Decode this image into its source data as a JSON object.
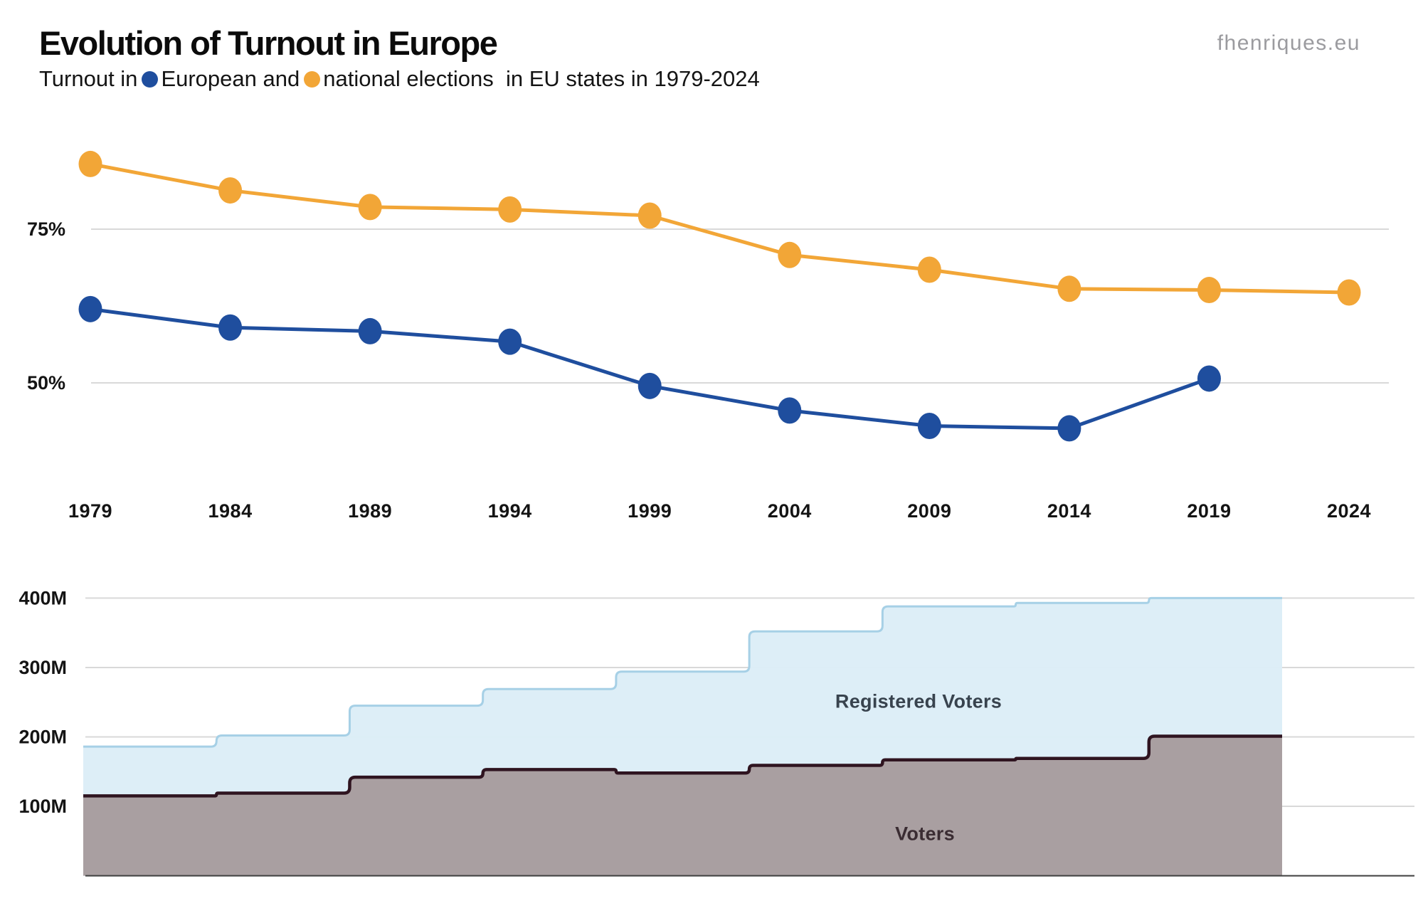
{
  "header": {
    "title": "Evolution of Turnout in Europe",
    "subtitle_prefix": "Turnout in",
    "subtitle_series1": "European and",
    "subtitle_series2": "national elections",
    "subtitle_suffix": "  in EU states in 1979-2024",
    "watermark": "fhenriques.eu"
  },
  "colors": {
    "european": "#1f4e9e",
    "national": "#f2a637",
    "grid": "#d9d9d9",
    "axis_text": "#141414",
    "registered_fill": "#dcedf7",
    "registered_edge": "#a6d0e6",
    "voters_fill": "#a79b9d",
    "voters_edge": "#2f1420",
    "baseline": "#3f3f3f",
    "registered_label": "#38434e",
    "voters_label": "#3a2c32",
    "watermark": "#9b9b9f"
  },
  "chart_data": [
    {
      "type": "line",
      "title": "Turnout in European and national elections in EU states 1979-2024",
      "x": [
        1979,
        1984,
        1989,
        1994,
        1999,
        2004,
        2009,
        2014,
        2019,
        2024
      ],
      "series": [
        {
          "name": "European elections turnout",
          "color_key": "european",
          "values_pct": [
            62.0,
            59.0,
            58.4,
            56.7,
            49.5,
            45.5,
            43.0,
            42.6,
            50.7,
            null
          ]
        },
        {
          "name": "National elections turnout",
          "color_key": "national",
          "values_pct": [
            85.6,
            81.3,
            78.6,
            78.2,
            77.2,
            70.8,
            68.4,
            65.3,
            65.1,
            64.7
          ]
        }
      ],
      "y_ticks": [
        {
          "label": "75%",
          "value": 75
        },
        {
          "label": "50%",
          "value": 50
        }
      ],
      "ylim": [
        38,
        90
      ],
      "grid": "horizontal",
      "legend_position": "in subtitle"
    },
    {
      "type": "area",
      "style": "step",
      "x": [
        1979,
        1984,
        1989,
        1994,
        1999,
        2004,
        2009,
        2014,
        2019
      ],
      "series": [
        {
          "name": "Registered Voters",
          "color_key": "registered_fill",
          "edge_key": "registered_edge",
          "values_millions": [
            186,
            202,
            245,
            269,
            294,
            352,
            388,
            393,
            400
          ]
        },
        {
          "name": "Voters",
          "color_key": "voters_fill",
          "edge_key": "voters_edge",
          "values_millions": [
            115,
            119,
            142,
            153,
            148,
            159,
            167,
            169,
            201
          ]
        }
      ],
      "y_ticks": [
        {
          "label": "100M",
          "value": 100
        },
        {
          "label": "200M",
          "value": 200
        },
        {
          "label": "300M",
          "value": 300
        },
        {
          "label": "400M",
          "value": 400
        }
      ],
      "ylim": [
        0,
        410
      ],
      "grid": "horizontal"
    }
  ]
}
